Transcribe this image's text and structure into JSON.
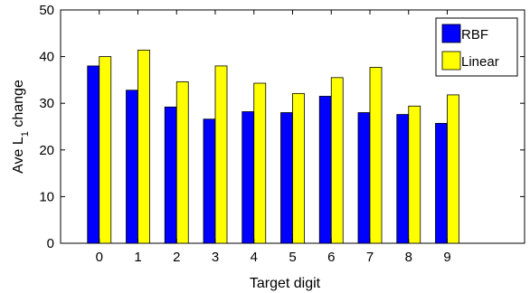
{
  "chart_data": {
    "type": "bar",
    "title": "",
    "xlabel": "Target digit",
    "ylabel": {
      "main": "Ave L",
      "subscript": "1",
      "suffix": " change"
    },
    "categories": [
      "0",
      "1",
      "2",
      "3",
      "4",
      "5",
      "6",
      "7",
      "8",
      "9"
    ],
    "xlim": [
      -1,
      11
    ],
    "ylim": [
      0,
      50
    ],
    "yticks": [
      "0",
      "10",
      "20",
      "30",
      "40",
      "50"
    ],
    "grid": false,
    "legend_position": "top-right",
    "series": [
      {
        "name": "RBF",
        "color": "#0000ff",
        "values": [
          38.0,
          32.8,
          29.2,
          26.6,
          28.2,
          28.0,
          31.5,
          28.0,
          27.6,
          25.7
        ]
      },
      {
        "name": "Linear",
        "color": "#ffff00",
        "values": [
          40.0,
          41.4,
          34.6,
          38.0,
          34.3,
          32.1,
          35.5,
          37.7,
          29.4,
          31.8
        ]
      }
    ]
  }
}
